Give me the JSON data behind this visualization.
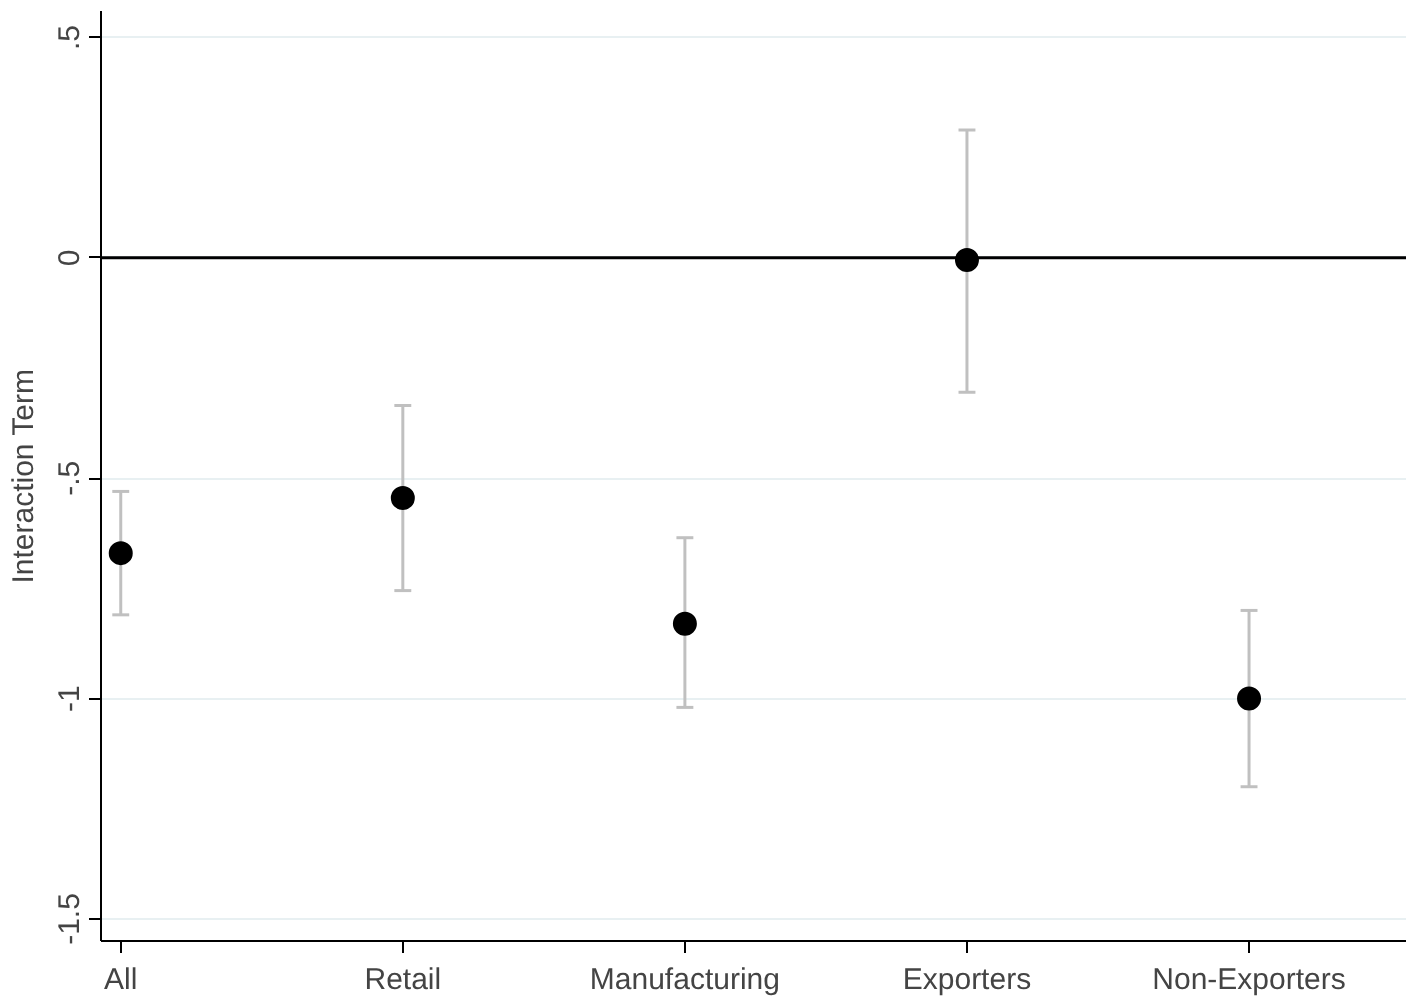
{
  "chart_data": {
    "type": "scatter",
    "ylabel": "Interaction Term",
    "categories": [
      "All",
      "Retail",
      "Manufacturing",
      "Exporters",
      "Non-Exporters"
    ],
    "series": [
      {
        "color": "#000000",
        "values": [
          -0.67,
          -0.545,
          -0.83,
          -0.005,
          -1.0
        ],
        "errors": [
          [
            -0.81,
            -0.53
          ],
          [
            -0.755,
            -0.335
          ],
          [
            -1.02,
            -0.635
          ],
          [
            -0.305,
            0.29
          ],
          [
            -1.2,
            -0.8
          ]
        ]
      }
    ],
    "ylim": [
      -1.55,
      0.56
    ],
    "yticks": [
      {
        "value": 0.5,
        "label": ".5"
      },
      0,
      {
        "value": -0.5,
        "label": "-.5"
      },
      -1,
      {
        "value": -1.5,
        "label": "-1.5"
      }
    ],
    "ref_lines": [
      {
        "axis": "y",
        "value": 0,
        "color": "#000000"
      }
    ],
    "grid": "y",
    "marker": "circle"
  }
}
